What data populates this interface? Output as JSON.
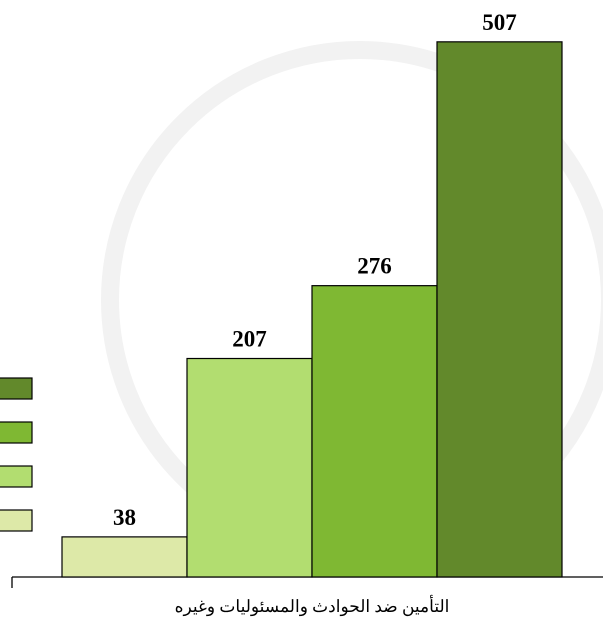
{
  "chart_data": {
    "type": "bar",
    "categories": [
      "التأمين ضد الحوادث والمسئوليات وغيره"
    ],
    "series": [
      {
        "color": "#dde9a8",
        "values": [
          38
        ]
      },
      {
        "color": "#b2dd70",
        "values": [
          207
        ]
      },
      {
        "color": "#7fb833",
        "values": [
          276
        ]
      },
      {
        "color": "#62892b",
        "values": [
          507
        ]
      }
    ],
    "ylim": [
      0,
      540
    ],
    "grid": false
  }
}
